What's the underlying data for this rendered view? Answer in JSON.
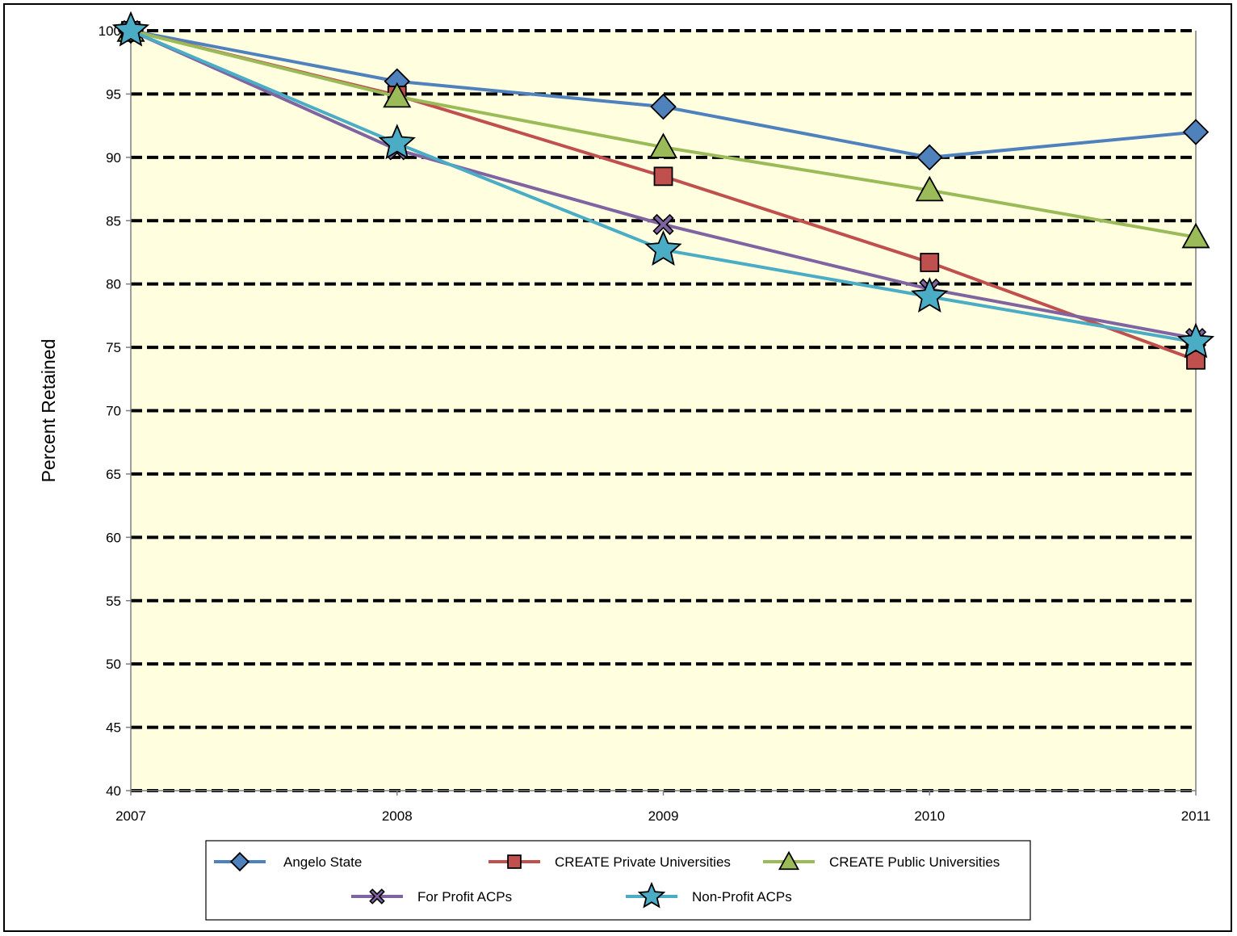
{
  "chart_data": {
    "type": "line",
    "title": "",
    "xlabel": "",
    "ylabel": "Percent Retained",
    "x": [
      2007,
      2008,
      2009,
      2010,
      2011
    ],
    "ylim": [
      40,
      100
    ],
    "yticks": [
      40,
      45,
      50,
      55,
      60,
      65,
      70,
      75,
      80,
      85,
      90,
      95,
      100
    ],
    "grid": "horizontal dashed",
    "legend_position": "bottom",
    "plot_background": "#FFFFE0",
    "series": [
      {
        "name": "Angelo State",
        "marker": "diamond",
        "color": "#4F81BD",
        "values": [
          100,
          96,
          94,
          90,
          92
        ]
      },
      {
        "name": "CREATE Private Universities",
        "marker": "square",
        "color": "#C0504D",
        "values": [
          100,
          94.9,
          88.5,
          81.7,
          74
        ]
      },
      {
        "name": "CREATE Public Universities",
        "marker": "triangle",
        "color": "#9BBB59",
        "values": [
          100,
          94.8,
          90.8,
          87.4,
          83.7
        ]
      },
      {
        "name": "For Profit ACPs",
        "marker": "x",
        "color": "#8064A2",
        "values": [
          100,
          90.6,
          84.7,
          79.6,
          75.7
        ]
      },
      {
        "name": "Non-Profit ACPs",
        "marker": "star",
        "color": "#4BACC6",
        "values": [
          100,
          91.1,
          82.7,
          79,
          75.4
        ]
      }
    ]
  }
}
